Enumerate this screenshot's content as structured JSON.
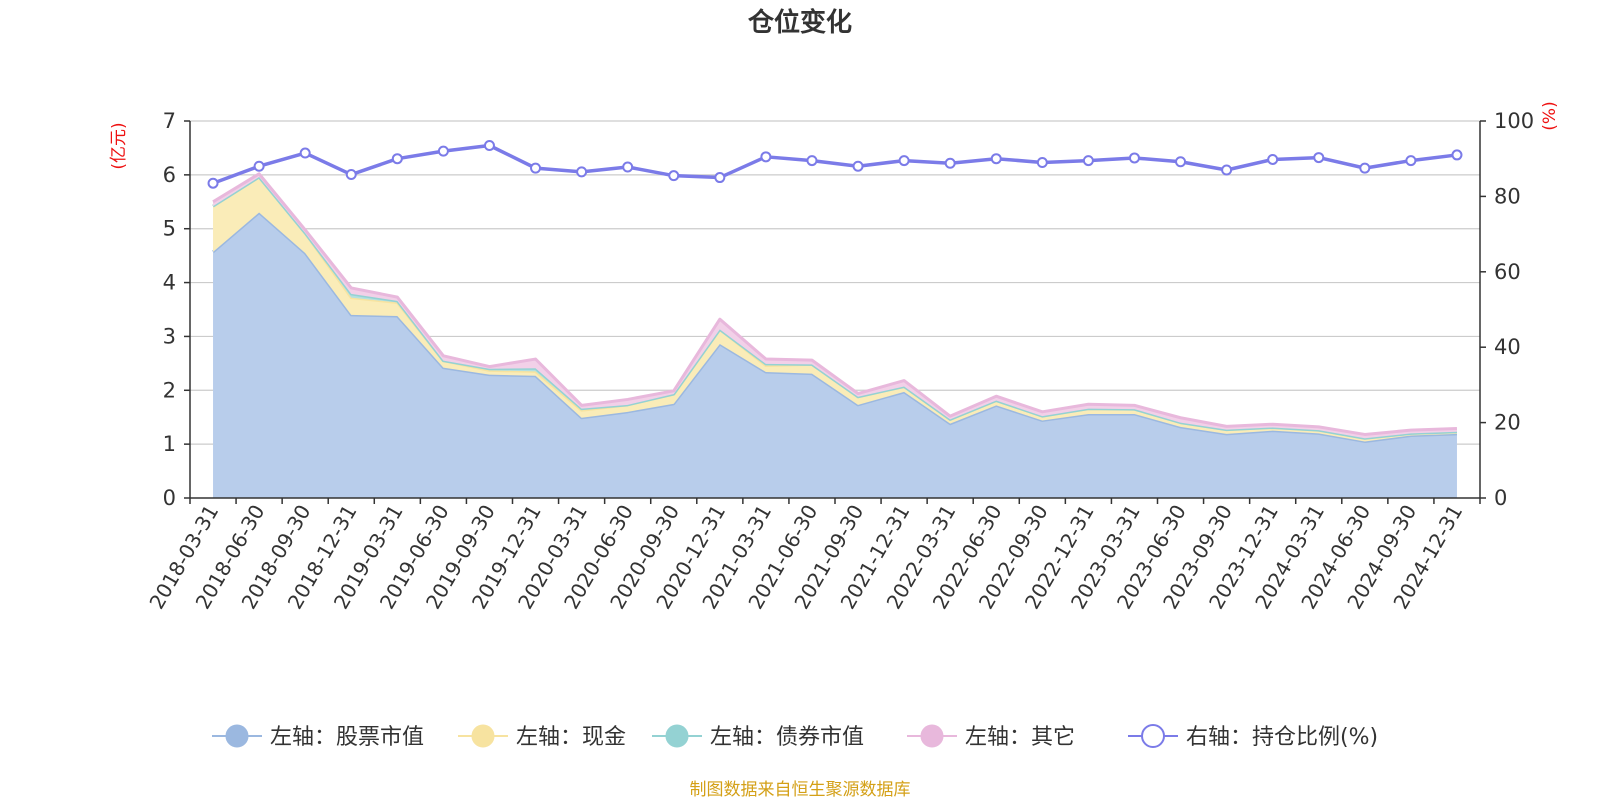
{
  "chart_data": {
    "type": "area",
    "title": "仓位变化",
    "left_unit": "(亿元)",
    "right_unit": "(%)",
    "x": [
      "2018-03-31",
      "2018-06-30",
      "2018-09-30",
      "2018-12-31",
      "2019-03-31",
      "2019-06-30",
      "2019-09-30",
      "2019-12-31",
      "2020-03-31",
      "2020-06-30",
      "2020-09-30",
      "2020-12-31",
      "2021-03-31",
      "2021-06-30",
      "2021-09-30",
      "2021-12-31",
      "2022-03-31",
      "2022-06-30",
      "2022-09-30",
      "2022-12-31",
      "2023-03-31",
      "2023-06-30",
      "2023-09-30",
      "2023-12-31",
      "2024-03-31",
      "2024-06-30",
      "2024-09-30",
      "2024-12-31"
    ],
    "ylim_left": [
      0,
      7
    ],
    "yticks_left": [
      0,
      1,
      2,
      3,
      4,
      5,
      6,
      7
    ],
    "ylim_right": [
      0,
      100
    ],
    "yticks_right": [
      0,
      20,
      40,
      60,
      80,
      100
    ],
    "grid": true,
    "legend_position": "bottom",
    "series": [
      {
        "name": "左轴：股票市值",
        "axis": "left",
        "stack": true,
        "color": "#9bb8e0",
        "fill": "#b8cdeb",
        "values": [
          4.57,
          5.3,
          4.55,
          3.4,
          3.38,
          2.42,
          2.29,
          2.27,
          1.49,
          1.6,
          1.75,
          2.86,
          2.34,
          2.31,
          1.73,
          1.97,
          1.38,
          1.72,
          1.44,
          1.56,
          1.56,
          1.32,
          1.19,
          1.25,
          1.2,
          1.05,
          1.16,
          1.19
        ]
      },
      {
        "name": "左轴：现金",
        "axis": "left",
        "stack": true,
        "color": "#f7e3a0",
        "fill": "#faecb8",
        "values": [
          0.85,
          0.66,
          0.37,
          0.32,
          0.25,
          0.13,
          0.08,
          0.08,
          0.14,
          0.13,
          0.18,
          0.27,
          0.12,
          0.17,
          0.15,
          0.1,
          0.08,
          0.09,
          0.08,
          0.1,
          0.09,
          0.08,
          0.08,
          0.06,
          0.06,
          0.06,
          0.04,
          0.04
        ]
      },
      {
        "name": "左轴：债券市值",
        "axis": "left",
        "stack": true,
        "color": "#94d2d3",
        "fill": "#b3e0e0",
        "values": [
          0.0,
          0.0,
          0.0,
          0.07,
          0.03,
          0.0,
          0.03,
          0.06,
          0.03,
          0.0,
          0.0,
          0.0,
          0.03,
          0.0,
          0.0,
          0.0,
          0.0,
          0.0,
          0.0,
          0.0,
          0.0,
          0.0,
          0.0,
          0.0,
          0.0,
          0.0,
          0.0,
          0.0
        ]
      },
      {
        "name": "左轴：其它",
        "axis": "left",
        "stack": true,
        "color": "#e8b8dc",
        "fill": "#f2d0e8",
        "values": [
          0.08,
          0.06,
          0.06,
          0.11,
          0.07,
          0.09,
          0.04,
          0.17,
          0.06,
          0.1,
          0.06,
          0.19,
          0.09,
          0.08,
          0.06,
          0.11,
          0.06,
          0.08,
          0.08,
          0.08,
          0.07,
          0.09,
          0.06,
          0.06,
          0.06,
          0.07,
          0.06,
          0.06
        ]
      },
      {
        "name": "右轴：持仓比例(%)",
        "axis": "right",
        "stack": false,
        "color": "#7b7be8",
        "values": [
          83.5,
          88.0,
          91.5,
          85.8,
          90.0,
          92.0,
          93.5,
          87.5,
          86.5,
          87.8,
          85.5,
          85.0,
          90.5,
          89.5,
          88.0,
          89.5,
          88.8,
          90.0,
          89.0,
          89.5,
          90.2,
          89.2,
          87.0,
          89.8,
          90.3,
          87.5,
          89.5,
          91.0
        ]
      }
    ]
  },
  "source_note": "制图数据来自恒生聚源数据库"
}
